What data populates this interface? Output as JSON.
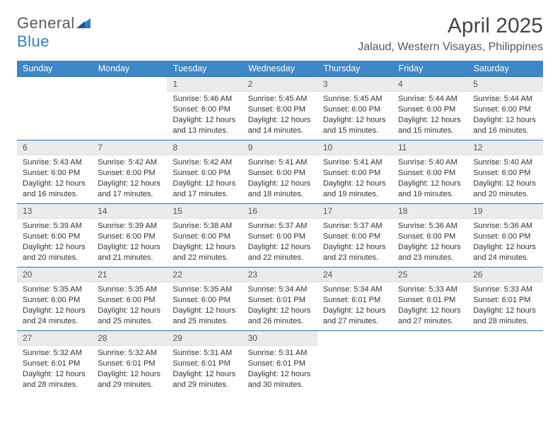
{
  "brand": {
    "part1": "General",
    "part2": "Blue"
  },
  "title": "April 2025",
  "location": "Jalaud, Western Visayas, Philippines",
  "colors": {
    "header_bg": "#3d87c7",
    "header_text": "#ffffff",
    "daynum_bg": "#e9ebec",
    "row_border": "#2f6fa6",
    "brand_gray": "#5a5a5a",
    "brand_blue": "#2f7fc2",
    "page_bg": "#ffffff"
  },
  "typography": {
    "title_fontsize": 30,
    "location_fontsize": 16,
    "weekday_fontsize": 12.5,
    "cell_fontsize": 11,
    "daynum_fontsize": 12
  },
  "weekdays": [
    "Sunday",
    "Monday",
    "Tuesday",
    "Wednesday",
    "Thursday",
    "Friday",
    "Saturday"
  ],
  "weeks": [
    [
      null,
      null,
      {
        "n": "1",
        "sunrise": "Sunrise: 5:46 AM",
        "sunset": "Sunset: 6:00 PM",
        "dl1": "Daylight: 12 hours",
        "dl2": "and 13 minutes."
      },
      {
        "n": "2",
        "sunrise": "Sunrise: 5:45 AM",
        "sunset": "Sunset: 6:00 PM",
        "dl1": "Daylight: 12 hours",
        "dl2": "and 14 minutes."
      },
      {
        "n": "3",
        "sunrise": "Sunrise: 5:45 AM",
        "sunset": "Sunset: 6:00 PM",
        "dl1": "Daylight: 12 hours",
        "dl2": "and 15 minutes."
      },
      {
        "n": "4",
        "sunrise": "Sunrise: 5:44 AM",
        "sunset": "Sunset: 6:00 PM",
        "dl1": "Daylight: 12 hours",
        "dl2": "and 15 minutes."
      },
      {
        "n": "5",
        "sunrise": "Sunrise: 5:44 AM",
        "sunset": "Sunset: 6:00 PM",
        "dl1": "Daylight: 12 hours",
        "dl2": "and 16 minutes."
      }
    ],
    [
      {
        "n": "6",
        "sunrise": "Sunrise: 5:43 AM",
        "sunset": "Sunset: 6:00 PM",
        "dl1": "Daylight: 12 hours",
        "dl2": "and 16 minutes."
      },
      {
        "n": "7",
        "sunrise": "Sunrise: 5:42 AM",
        "sunset": "Sunset: 6:00 PM",
        "dl1": "Daylight: 12 hours",
        "dl2": "and 17 minutes."
      },
      {
        "n": "8",
        "sunrise": "Sunrise: 5:42 AM",
        "sunset": "Sunset: 6:00 PM",
        "dl1": "Daylight: 12 hours",
        "dl2": "and 17 minutes."
      },
      {
        "n": "9",
        "sunrise": "Sunrise: 5:41 AM",
        "sunset": "Sunset: 6:00 PM",
        "dl1": "Daylight: 12 hours",
        "dl2": "and 18 minutes."
      },
      {
        "n": "10",
        "sunrise": "Sunrise: 5:41 AM",
        "sunset": "Sunset: 6:00 PM",
        "dl1": "Daylight: 12 hours",
        "dl2": "and 19 minutes."
      },
      {
        "n": "11",
        "sunrise": "Sunrise: 5:40 AM",
        "sunset": "Sunset: 6:00 PM",
        "dl1": "Daylight: 12 hours",
        "dl2": "and 19 minutes."
      },
      {
        "n": "12",
        "sunrise": "Sunrise: 5:40 AM",
        "sunset": "Sunset: 6:00 PM",
        "dl1": "Daylight: 12 hours",
        "dl2": "and 20 minutes."
      }
    ],
    [
      {
        "n": "13",
        "sunrise": "Sunrise: 5:39 AM",
        "sunset": "Sunset: 6:00 PM",
        "dl1": "Daylight: 12 hours",
        "dl2": "and 20 minutes."
      },
      {
        "n": "14",
        "sunrise": "Sunrise: 5:39 AM",
        "sunset": "Sunset: 6:00 PM",
        "dl1": "Daylight: 12 hours",
        "dl2": "and 21 minutes."
      },
      {
        "n": "15",
        "sunrise": "Sunrise: 5:38 AM",
        "sunset": "Sunset: 6:00 PM",
        "dl1": "Daylight: 12 hours",
        "dl2": "and 22 minutes."
      },
      {
        "n": "16",
        "sunrise": "Sunrise: 5:37 AM",
        "sunset": "Sunset: 6:00 PM",
        "dl1": "Daylight: 12 hours",
        "dl2": "and 22 minutes."
      },
      {
        "n": "17",
        "sunrise": "Sunrise: 5:37 AM",
        "sunset": "Sunset: 6:00 PM",
        "dl1": "Daylight: 12 hours",
        "dl2": "and 23 minutes."
      },
      {
        "n": "18",
        "sunrise": "Sunrise: 5:36 AM",
        "sunset": "Sunset: 6:00 PM",
        "dl1": "Daylight: 12 hours",
        "dl2": "and 23 minutes."
      },
      {
        "n": "19",
        "sunrise": "Sunrise: 5:36 AM",
        "sunset": "Sunset: 6:00 PM",
        "dl1": "Daylight: 12 hours",
        "dl2": "and 24 minutes."
      }
    ],
    [
      {
        "n": "20",
        "sunrise": "Sunrise: 5:35 AM",
        "sunset": "Sunset: 6:00 PM",
        "dl1": "Daylight: 12 hours",
        "dl2": "and 24 minutes."
      },
      {
        "n": "21",
        "sunrise": "Sunrise: 5:35 AM",
        "sunset": "Sunset: 6:00 PM",
        "dl1": "Daylight: 12 hours",
        "dl2": "and 25 minutes."
      },
      {
        "n": "22",
        "sunrise": "Sunrise: 5:35 AM",
        "sunset": "Sunset: 6:00 PM",
        "dl1": "Daylight: 12 hours",
        "dl2": "and 25 minutes."
      },
      {
        "n": "23",
        "sunrise": "Sunrise: 5:34 AM",
        "sunset": "Sunset: 6:01 PM",
        "dl1": "Daylight: 12 hours",
        "dl2": "and 26 minutes."
      },
      {
        "n": "24",
        "sunrise": "Sunrise: 5:34 AM",
        "sunset": "Sunset: 6:01 PM",
        "dl1": "Daylight: 12 hours",
        "dl2": "and 27 minutes."
      },
      {
        "n": "25",
        "sunrise": "Sunrise: 5:33 AM",
        "sunset": "Sunset: 6:01 PM",
        "dl1": "Daylight: 12 hours",
        "dl2": "and 27 minutes."
      },
      {
        "n": "26",
        "sunrise": "Sunrise: 5:33 AM",
        "sunset": "Sunset: 6:01 PM",
        "dl1": "Daylight: 12 hours",
        "dl2": "and 28 minutes."
      }
    ],
    [
      {
        "n": "27",
        "sunrise": "Sunrise: 5:32 AM",
        "sunset": "Sunset: 6:01 PM",
        "dl1": "Daylight: 12 hours",
        "dl2": "and 28 minutes."
      },
      {
        "n": "28",
        "sunrise": "Sunrise: 5:32 AM",
        "sunset": "Sunset: 6:01 PM",
        "dl1": "Daylight: 12 hours",
        "dl2": "and 29 minutes."
      },
      {
        "n": "29",
        "sunrise": "Sunrise: 5:31 AM",
        "sunset": "Sunset: 6:01 PM",
        "dl1": "Daylight: 12 hours",
        "dl2": "and 29 minutes."
      },
      {
        "n": "30",
        "sunrise": "Sunrise: 5:31 AM",
        "sunset": "Sunset: 6:01 PM",
        "dl1": "Daylight: 12 hours",
        "dl2": "and 30 minutes."
      },
      null,
      null,
      null
    ]
  ]
}
